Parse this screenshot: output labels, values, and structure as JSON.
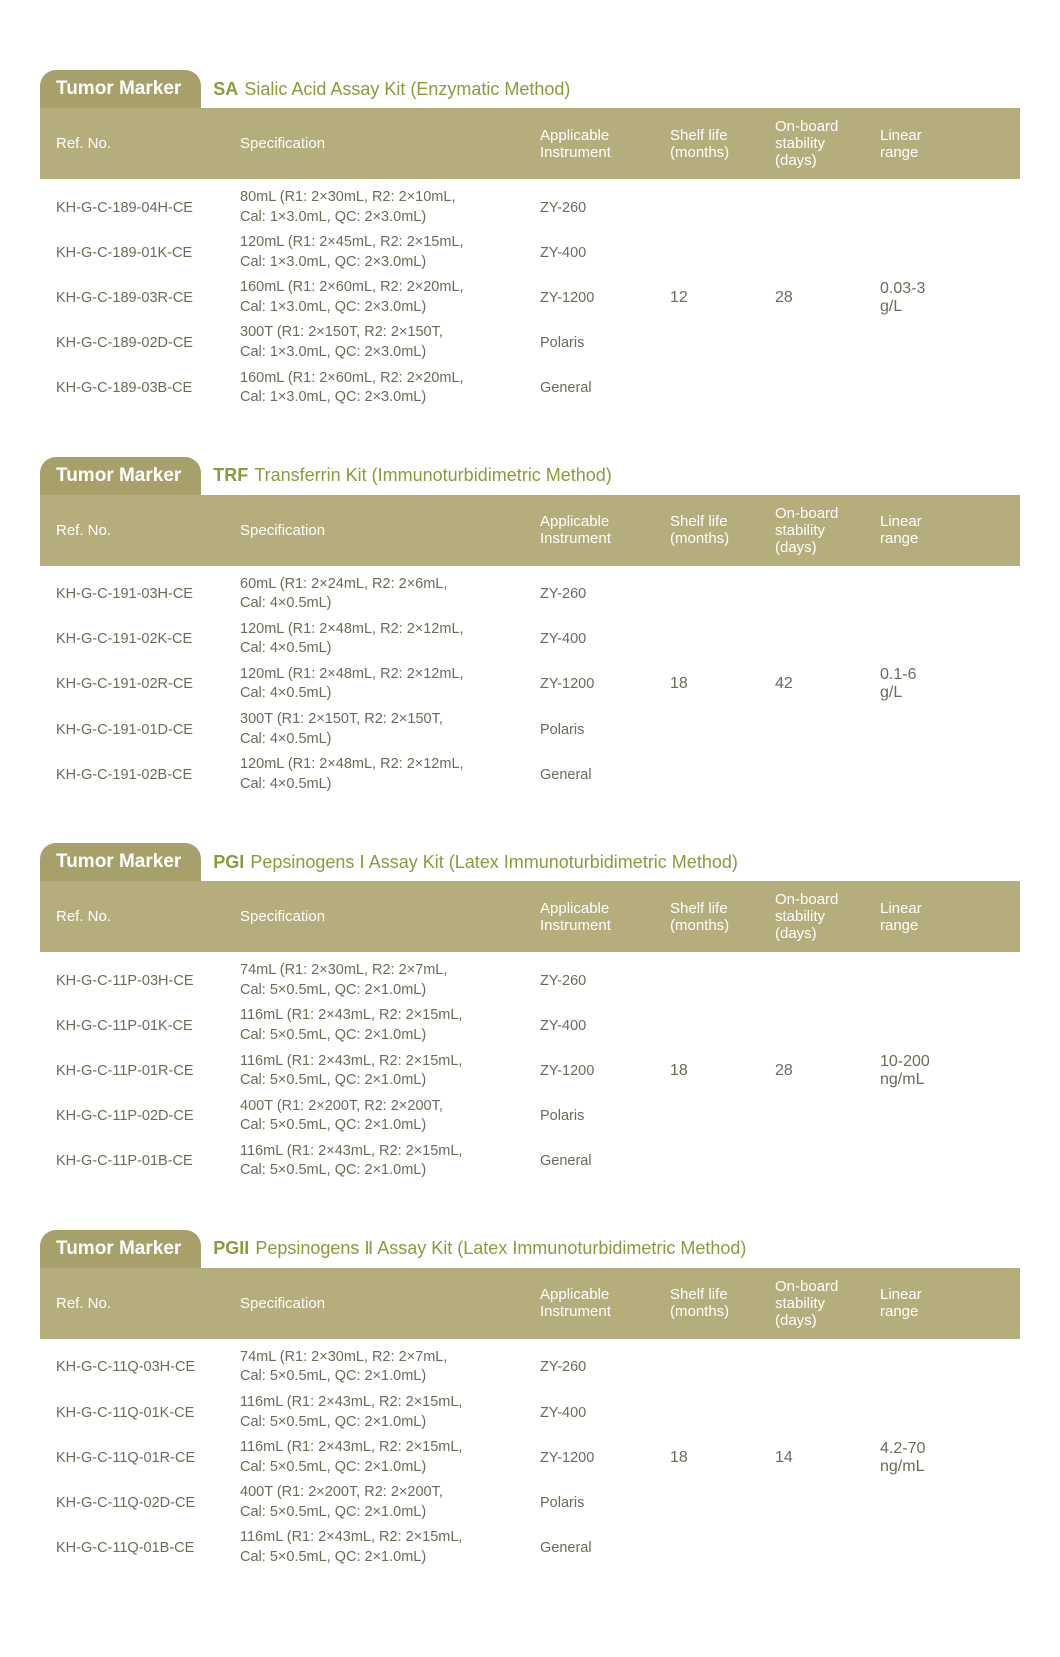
{
  "badge_label": "Tumor Marker",
  "columns": {
    "ref": "Ref. No.",
    "spec": "Specification",
    "inst": "Applicable\nInstrument",
    "shelf": "Shelf life\n(months)",
    "stab": "On-board\nstability\n(days)",
    "range": "Linear\nrange"
  },
  "colors": {
    "badge_bg": "#a7a06a",
    "header_bg": "#b5ad7c",
    "header_text": "#ffffff",
    "accent": "#8a9a3c",
    "body_text": "#6b6b5a"
  },
  "sections": [
    {
      "code": "SA",
      "name": "Sialic Acid  Assay Kit (Enzymatic Method)",
      "shelf": "12",
      "stability": "28",
      "range": "0.03-3\ng/L",
      "rows": [
        {
          "ref": "KH-G-C-189-04H-CE",
          "spec": "80mL (R1: 2×30mL, R2: 2×10mL,\nCal: 1×3.0mL, QC: 2×3.0mL)",
          "inst": "ZY-260"
        },
        {
          "ref": "KH-G-C-189-01K-CE",
          "spec": "120mL (R1: 2×45mL, R2: 2×15mL,\nCal: 1×3.0mL, QC: 2×3.0mL)",
          "inst": "ZY-400"
        },
        {
          "ref": "KH-G-C-189-03R-CE",
          "spec": "160mL (R1: 2×60mL, R2: 2×20mL,\nCal: 1×3.0mL, QC: 2×3.0mL)",
          "inst": "ZY-1200"
        },
        {
          "ref": "KH-G-C-189-02D-CE",
          "spec": "300T (R1: 2×150T, R2: 2×150T,\nCal: 1×3.0mL, QC: 2×3.0mL)",
          "inst": "Polaris"
        },
        {
          "ref": "KH-G-C-189-03B-CE",
          "spec": "160mL (R1: 2×60mL, R2: 2×20mL,\nCal: 1×3.0mL, QC: 2×3.0mL)",
          "inst": "General"
        }
      ]
    },
    {
      "code": "TRF",
      "name": "Transferrin Kit (Immunoturbidimetric Method)",
      "shelf": "18",
      "stability": "42",
      "range": "0.1-6\ng/L",
      "rows": [
        {
          "ref": "KH-G-C-191-03H-CE",
          "spec": "60mL (R1: 2×24mL, R2: 2×6mL,\nCal: 4×0.5mL)",
          "inst": "ZY-260"
        },
        {
          "ref": "KH-G-C-191-02K-CE",
          "spec": "120mL (R1: 2×48mL, R2: 2×12mL,\nCal: 4×0.5mL)",
          "inst": "ZY-400"
        },
        {
          "ref": "KH-G-C-191-02R-CE",
          "spec": "120mL (R1: 2×48mL, R2: 2×12mL,\nCal: 4×0.5mL)",
          "inst": "ZY-1200"
        },
        {
          "ref": "KH-G-C-191-01D-CE",
          "spec": "300T (R1: 2×150T, R2: 2×150T,\nCal: 4×0.5mL)",
          "inst": "Polaris"
        },
        {
          "ref": "KH-G-C-191-02B-CE",
          "spec": "120mL (R1: 2×48mL, R2: 2×12mL,\nCal: 4×0.5mL)",
          "inst": "General"
        }
      ]
    },
    {
      "code": "PGI",
      "name": "Pepsinogens Ⅰ Assay Kit (Latex Immunoturbidimetric Method)",
      "shelf": "18",
      "stability": "28",
      "range": "10-200\nng/mL",
      "rows": [
        {
          "ref": "KH-G-C-11P-03H-CE",
          "spec": "74mL (R1: 2×30mL,  R2: 2×7mL,\nCal: 5×0.5mL, QC: 2×1.0mL)",
          "inst": "ZY-260"
        },
        {
          "ref": "KH-G-C-11P-01K-CE",
          "spec": "116mL (R1: 2×43mL,  R2: 2×15mL,\nCal: 5×0.5mL, QC: 2×1.0mL)",
          "inst": "ZY-400"
        },
        {
          "ref": "KH-G-C-11P-01R-CE",
          "spec": "116mL (R1: 2×43mL,  R2: 2×15mL,\nCal: 5×0.5mL, QC: 2×1.0mL)",
          "inst": "ZY-1200"
        },
        {
          "ref": "KH-G-C-11P-02D-CE",
          "spec": "400T (R1: 2×200T, R2: 2×200T,\nCal: 5×0.5mL, QC: 2×1.0mL)",
          "inst": "Polaris"
        },
        {
          "ref": "KH-G-C-11P-01B-CE",
          "spec": "116mL (R1: 2×43mL,  R2: 2×15mL,\nCal: 5×0.5mL, QC: 2×1.0mL)",
          "inst": "General"
        }
      ]
    },
    {
      "code": "PGII",
      "name": "Pepsinogens Ⅱ Assay Kit (Latex Immunoturbidimetric Method)",
      "shelf": "18",
      "stability": "14",
      "range": "4.2-70\nng/mL",
      "rows": [
        {
          "ref": "KH-G-C-11Q-03H-CE",
          "spec": "74mL (R1: 2×30mL,  R2: 2×7mL,\nCal: 5×0.5mL, QC: 2×1.0mL)",
          "inst": "ZY-260"
        },
        {
          "ref": "KH-G-C-11Q-01K-CE",
          "spec": "116mL (R1: 2×43mL,  R2: 2×15mL,\nCal: 5×0.5mL, QC: 2×1.0mL)",
          "inst": "ZY-400"
        },
        {
          "ref": "KH-G-C-11Q-01R-CE",
          "spec": "116mL (R1: 2×43mL,  R2: 2×15mL,\nCal: 5×0.5mL, QC: 2×1.0mL)",
          "inst": "ZY-1200"
        },
        {
          "ref": "KH-G-C-11Q-02D-CE",
          "spec": "400T (R1: 2×200T, R2: 2×200T,\nCal: 5×0.5mL, QC: 2×1.0mL)",
          "inst": "Polaris"
        },
        {
          "ref": "KH-G-C-11Q-01B-CE",
          "spec": "116mL (R1: 2×43mL,  R2: 2×15mL,\nCal: 5×0.5mL, QC: 2×1.0mL)",
          "inst": "General"
        }
      ]
    }
  ]
}
